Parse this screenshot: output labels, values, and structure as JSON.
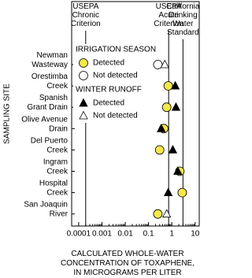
{
  "chart_data": {
    "type": "scatter",
    "log_x": true,
    "y_label": "SAMPLING SITE",
    "x_label": [
      "CALCULATED WHOLE-WATER",
      "CONCENTRATION OF TOXAPHENE,",
      "IN MICROGRAMS PER LITER"
    ],
    "categories": [
      [
        "Newman",
        "Wasteway"
      ],
      [
        "Orestimba",
        "Creek"
      ],
      [
        "Spanish",
        "Grant Drain"
      ],
      [
        "Olive Avenue",
        "Drain"
      ],
      [
        "Del Puerto",
        "Creek"
      ],
      [
        "Ingram",
        "Creek"
      ],
      [
        "Hospital",
        "Creek"
      ],
      [
        "San Joaquin",
        "River"
      ]
    ],
    "xlim": [
      5e-05,
      15
    ],
    "xticks": [
      0.0001,
      0.001,
      0.01,
      0.1,
      1,
      10
    ],
    "reference_lines": [
      {
        "value": 0.0002,
        "label": [
          "USEPA",
          "Chronic",
          "Criterion"
        ]
      },
      {
        "value": 0.73,
        "label": [
          "USEPA",
          "Acute",
          "Criterion"
        ]
      },
      {
        "value": 3,
        "label": [
          "California",
          "Drinking",
          "Water",
          "Standard"
        ]
      }
    ],
    "groups": [
      {
        "name": "IRRIGATION SEASON",
        "marker": "circle",
        "series": [
          {
            "name": "Detected",
            "color": "#f3e84b",
            "values": [
              null,
              0.7,
              0.6,
              0.45,
              0.3,
              2.2,
              2.8,
              0.25
            ]
          },
          {
            "name": "Not detected",
            "color": "#ffffff",
            "values": [
              0.25,
              null,
              null,
              null,
              null,
              null,
              null,
              null
            ]
          }
        ]
      },
      {
        "name": "WINTER RUNOFF",
        "marker": "triangle",
        "series": [
          {
            "name": "Detected",
            "color": "#000000",
            "values": [
              null,
              1.4,
              1.5,
              0.35,
              1.1,
              1.8,
              0.7,
              null
            ]
          },
          {
            "name": "Not detected",
            "color": "#ffffff",
            "values": [
              0.5,
              null,
              null,
              null,
              null,
              null,
              null,
              0.6
            ]
          }
        ]
      }
    ]
  }
}
